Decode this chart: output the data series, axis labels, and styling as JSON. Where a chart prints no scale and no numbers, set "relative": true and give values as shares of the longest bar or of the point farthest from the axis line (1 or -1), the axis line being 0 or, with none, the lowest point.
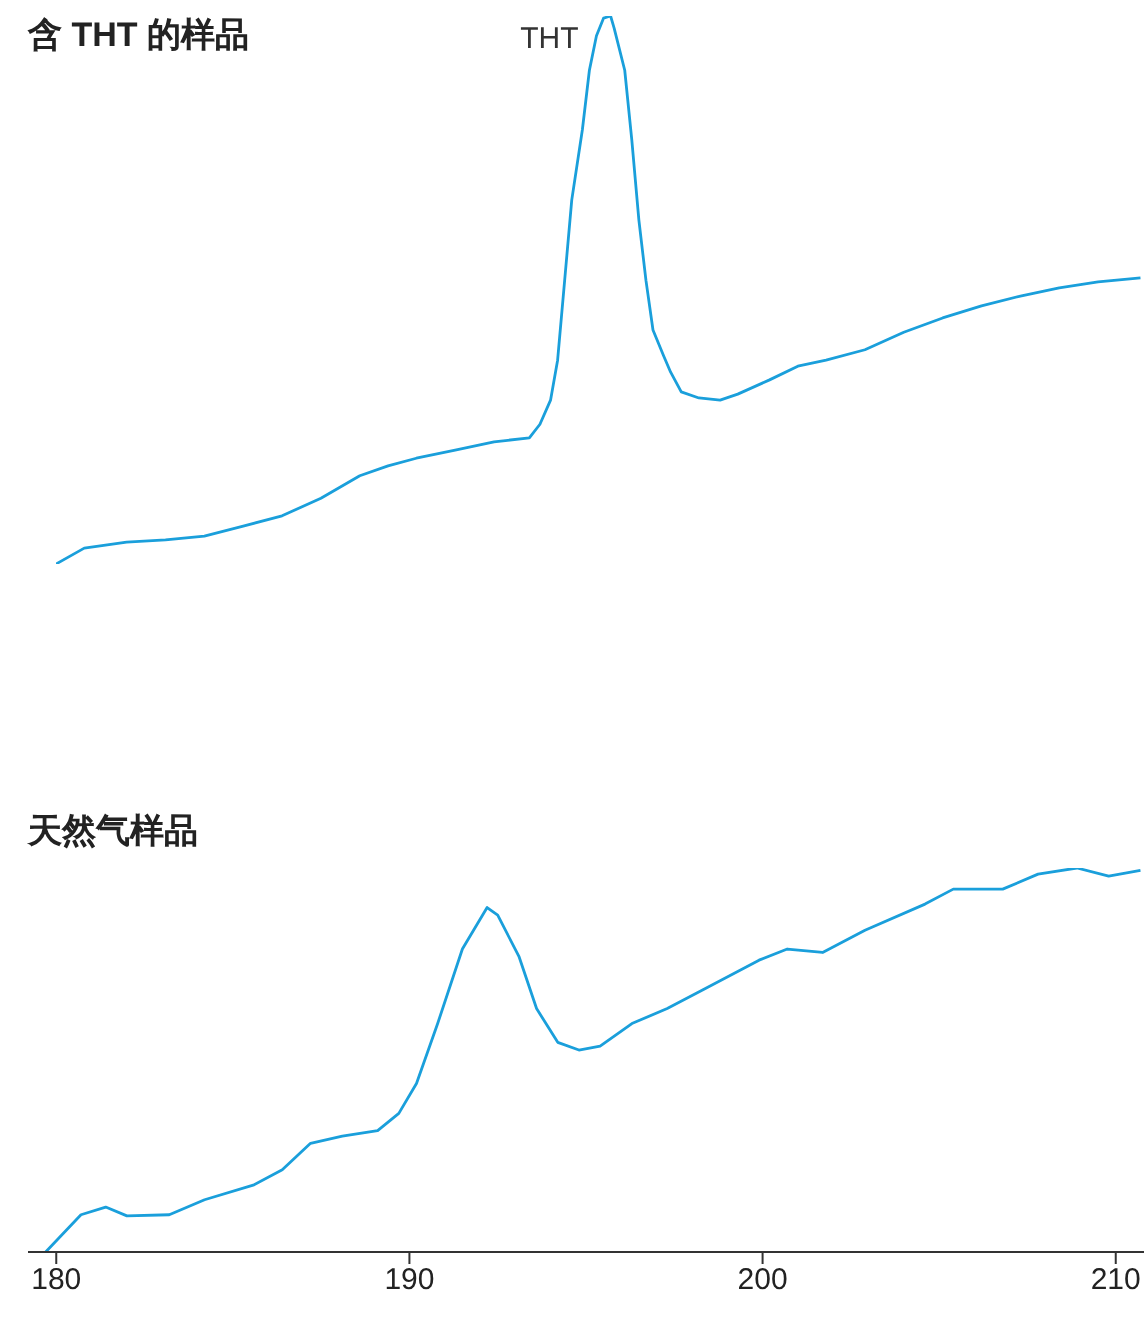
{
  "chart_data": [
    {
      "type": "line",
      "title": "含 THT 的样品",
      "relative": true,
      "xlim": [
        180,
        210.8
      ],
      "xticks": [
        180,
        190,
        200,
        210
      ],
      "tick_labels": false,
      "annotations": [
        {
          "text": "THT",
          "x": 195.7,
          "y": 1
        }
      ],
      "series": [
        {
          "color": "#1a9fdb",
          "x": [
            180.0,
            180.8,
            182.0,
            183.1,
            184.2,
            185.3,
            186.4,
            187.5,
            188.6,
            189.4,
            190.2,
            191.3,
            192.4,
            193.4,
            193.7,
            194.0,
            194.2,
            194.4,
            194.6,
            194.9,
            195.1,
            195.3,
            195.5,
            195.7,
            195.8,
            196.1,
            196.3,
            196.5,
            196.7,
            196.9,
            197.2,
            197.4,
            197.7,
            198.2,
            198.8,
            199.3,
            200.2,
            201.0,
            201.8,
            202.9,
            204.0,
            205.1,
            206.2,
            207.3,
            208.4,
            209.5,
            210.7
          ],
          "values": [
            0,
            0.029,
            0.04,
            0.044,
            0.051,
            0.069,
            0.088,
            0.12,
            0.161,
            0.179,
            0.193,
            0.208,
            0.223,
            0.23,
            0.255,
            0.299,
            0.372,
            0.518,
            0.664,
            0.792,
            0.901,
            0.964,
            0.996,
            1,
            0.978,
            0.901,
            0.774,
            0.628,
            0.518,
            0.427,
            0.38,
            0.35,
            0.314,
            0.303,
            0.299,
            0.31,
            0.336,
            0.361,
            0.372,
            0.391,
            0.423,
            0.449,
            0.471,
            0.489,
            0.504,
            0.515,
            0.522
          ]
        }
      ]
    },
    {
      "type": "line",
      "title": "天然气样品",
      "relative": true,
      "xlim": [
        179.2,
        210.8
      ],
      "xticks": [
        180,
        190,
        200,
        210
      ],
      "tick_labels": "x",
      "series": [
        {
          "color": "#1a9fdb",
          "x": [
            179.7,
            180.7,
            181.4,
            182.0,
            183.2,
            184.2,
            185.6,
            186.4,
            187.2,
            188.1,
            189.1,
            189.7,
            190.2,
            190.8,
            191.5,
            192.2,
            192.5,
            193.1,
            193.6,
            194.2,
            194.8,
            195.4,
            196.3,
            197.3,
            198.3,
            199.9,
            200.7,
            201.7,
            202.9,
            204.6,
            205.4,
            206.8,
            207.8,
            208.9,
            209.8,
            210.7
          ],
          "values": [
            0,
            0.097,
            0.117,
            0.094,
            0.097,
            0.136,
            0.175,
            0.214,
            0.283,
            0.302,
            0.316,
            0.361,
            0.439,
            0.595,
            0.789,
            0.897,
            0.877,
            0.77,
            0.634,
            0.546,
            0.526,
            0.536,
            0.595,
            0.634,
            0.682,
            0.76,
            0.789,
            0.78,
            0.838,
            0.906,
            0.945,
            0.945,
            0.984,
            1.0,
            0.979,
            0.994
          ]
        }
      ]
    }
  ]
}
